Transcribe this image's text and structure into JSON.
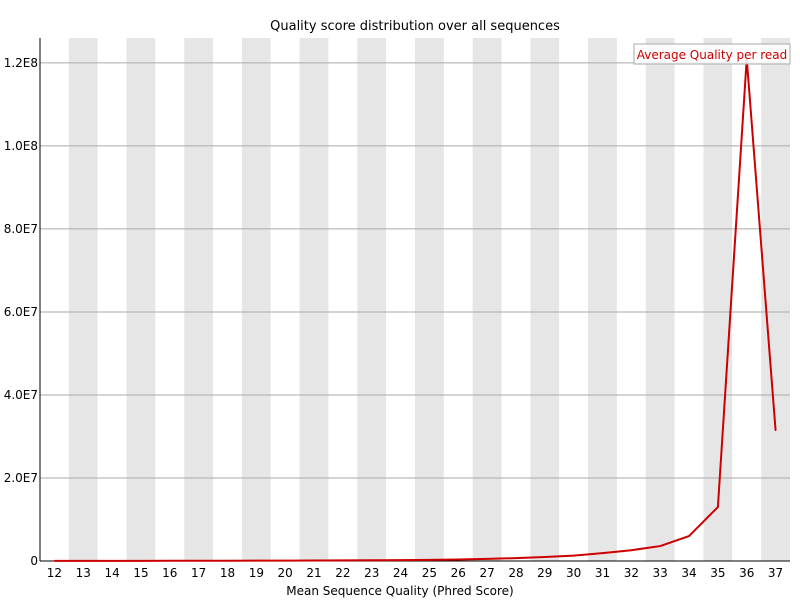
{
  "chart_data": {
    "type": "line",
    "title": "Quality score distribution over all sequences",
    "xlabel": "Mean Sequence Quality (Phred Score)",
    "ylabel": "",
    "categories": [
      "12",
      "13",
      "14",
      "15",
      "16",
      "17",
      "18",
      "19",
      "20",
      "21",
      "22",
      "23",
      "24",
      "25",
      "26",
      "27",
      "28",
      "29",
      "30",
      "31",
      "32",
      "33",
      "34",
      "35",
      "36",
      "37"
    ],
    "ylim": [
      0,
      126000000
    ],
    "yticks": [
      0,
      20000000,
      40000000,
      60000000,
      80000000,
      100000000,
      120000000
    ],
    "ytick_labels": [
      "0",
      "2.0E7",
      "4.0E7",
      "6.0E7",
      "8.0E7",
      "1.0E8",
      "1.2E8"
    ],
    "series": [
      {
        "name": "Average Quality per read",
        "color": "#cc0000",
        "values": [
          30000,
          20000,
          30000,
          40000,
          50000,
          60000,
          70000,
          90000,
          100000,
          120000,
          140000,
          170000,
          200000,
          260000,
          350000,
          500000,
          700000,
          950000,
          1300000,
          1900000,
          2600000,
          3600000,
          6000000,
          13000000,
          121000000,
          31500000
        ]
      }
    ],
    "grid": true,
    "legend_position": "top-right",
    "band_colors": [
      "#ffffff",
      "#e6e6e6"
    ]
  }
}
